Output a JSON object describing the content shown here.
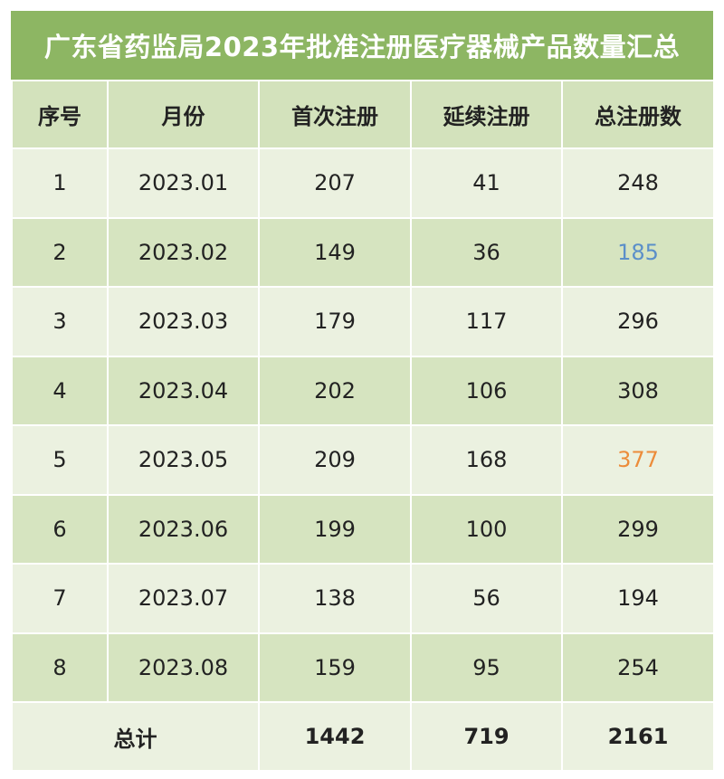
{
  "header": {
    "title": "广东省药监局2023年批准注册医疗器械产品数量汇总"
  },
  "table": {
    "columns": [
      "序号",
      "月份",
      "首次注册",
      "延续注册",
      "总注册数"
    ],
    "rows": [
      [
        1,
        "2023.01",
        207,
        41,
        248
      ],
      [
        2,
        "2023.02",
        149,
        36,
        185
      ],
      [
        3,
        "2023.03",
        179,
        117,
        296
      ],
      [
        4,
        "2023.04",
        202,
        106,
        308
      ],
      [
        5,
        "2023.05",
        209,
        168,
        377
      ],
      [
        6,
        "2023.06",
        199,
        100,
        299
      ],
      [
        7,
        "2023.07",
        138,
        56,
        194
      ],
      [
        8,
        "2023.08",
        159,
        95,
        254
      ]
    ],
    "total": {
      "label": "总计",
      "values": [
        1442,
        719,
        2161
      ]
    }
  }
}
